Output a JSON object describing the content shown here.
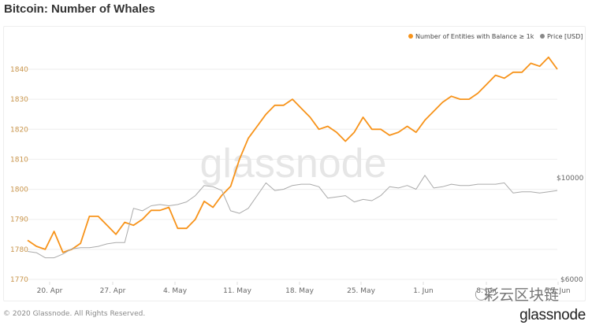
{
  "title": "Bitcoin: Number of Whales",
  "legend": [
    {
      "label": "Number of Entities with Balance ≥ 1k",
      "color": "#f7931a"
    },
    {
      "label": "Price [USD]",
      "color": "#888888"
    }
  ],
  "footer": "© 2020 Glassnode. All Rights Reserved.",
  "brand": "glassnode",
  "watermark": "glassnode",
  "overlay_watermark": "彩云区块链",
  "colors": {
    "primary": "#f7931a",
    "price": "#aaaaaa",
    "axis_left": "#c8944a",
    "grid": "#eeeeee"
  },
  "chart_data": {
    "type": "line",
    "title": "Bitcoin: Number of Whales",
    "xlabel": "",
    "ylabel_left": "",
    "ylabel_right": "",
    "x_ticks": [
      "20. Apr",
      "27. Apr",
      "4. May",
      "11. May",
      "18. May",
      "25. May",
      "1. Jun",
      "8. Jun",
      "15. Jun"
    ],
    "y_ticks_left": [
      1770,
      1780,
      1790,
      1800,
      1810,
      1820,
      1830,
      1840
    ],
    "y_ticks_right": [
      "$6000",
      "$10000"
    ],
    "ylim_left": [
      1770,
      1845
    ],
    "x_start": "17. Apr",
    "x_end": "15. Jun",
    "series": [
      {
        "name": "Number of Entities with Balance ≥ 1k",
        "axis": "left",
        "values": [
          1783,
          1781,
          1780,
          1786,
          1779,
          1780,
          1782,
          1791,
          1791,
          1788,
          1785,
          1789,
          1788,
          1790,
          1793,
          1793,
          1794,
          1787,
          1787,
          1790,
          1796,
          1794,
          1798,
          1801,
          1810,
          1817,
          1821,
          1825,
          1828,
          1828,
          1830,
          1827,
          1824,
          1820,
          1821,
          1819,
          1816,
          1819,
          1824,
          1820,
          1820,
          1818,
          1819,
          1821,
          1819,
          1823,
          1826,
          1829,
          1831,
          1830,
          1830,
          1832,
          1835,
          1838,
          1837,
          1839,
          1839,
          1842,
          1841,
          1844,
          1840
        ]
      },
      {
        "name": "Price [USD]",
        "axis": "right",
        "values": [
          7100,
          7050,
          6850,
          6850,
          7000,
          7200,
          7250,
          7250,
          7300,
          7400,
          7450,
          7450,
          8800,
          8700,
          8900,
          8950,
          8900,
          8950,
          9050,
          9300,
          9700,
          9650,
          9500,
          8700,
          8600,
          8800,
          9300,
          9800,
          9500,
          9550,
          9700,
          9750,
          9750,
          9650,
          9200,
          9250,
          9300,
          9050,
          9150,
          9100,
          9300,
          9650,
          9600,
          9700,
          9550,
          10100,
          9600,
          9650,
          9750,
          9700,
          9700,
          9750,
          9750,
          9750,
          9800,
          9400,
          9450,
          9450,
          9400,
          9450,
          9500
        ]
      }
    ],
    "legend_position": "top-right",
    "grid": true
  }
}
